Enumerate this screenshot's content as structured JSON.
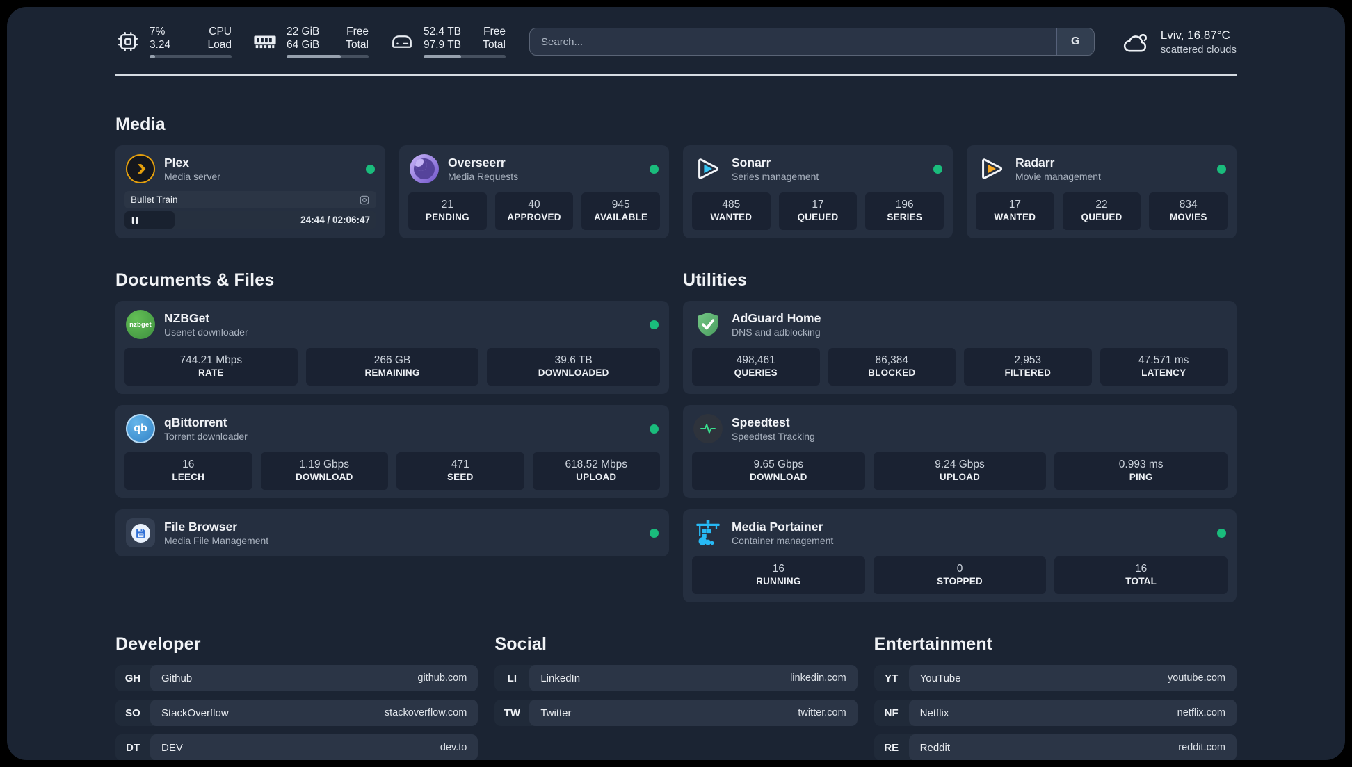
{
  "header": {
    "metrics": [
      {
        "v1": "7%",
        "v2": "3.24",
        "l1": "CPU",
        "l2": "Load",
        "progress_pct": 7
      },
      {
        "v1": "22 GiB",
        "v2": "64 GiB",
        "l1": "Free",
        "l2": "Total",
        "progress_pct": 66
      },
      {
        "v1": "52.4 TB",
        "v2": "97.9 TB",
        "l1": "Free",
        "l2": "Total",
        "progress_pct": 46
      }
    ],
    "search": {
      "placeholder": "Search...",
      "provider": "G"
    },
    "weather": {
      "title": "Lviv, 16.87°C",
      "subtitle": "scattered clouds"
    }
  },
  "media": {
    "title": "Media",
    "plex": {
      "name": "Plex",
      "description": "Media server",
      "now_playing": {
        "title": "Bullet Train",
        "time_display": "24:44 / 02:06:47",
        "progress_pct": 20
      }
    },
    "overseerr": {
      "name": "Overseerr",
      "description": "Media Requests",
      "stats": [
        {
          "value": "21",
          "label": "PENDING"
        },
        {
          "value": "40",
          "label": "APPROVED"
        },
        {
          "value": "945",
          "label": "AVAILABLE"
        }
      ]
    },
    "sonarr": {
      "name": "Sonarr",
      "description": "Series management",
      "stats": [
        {
          "value": "485",
          "label": "WANTED"
        },
        {
          "value": "17",
          "label": "QUEUED"
        },
        {
          "value": "196",
          "label": "SERIES"
        }
      ]
    },
    "radarr": {
      "name": "Radarr",
      "description": "Movie management",
      "stats": [
        {
          "value": "17",
          "label": "WANTED"
        },
        {
          "value": "22",
          "label": "QUEUED"
        },
        {
          "value": "834",
          "label": "MOVIES"
        }
      ]
    }
  },
  "documents": {
    "title": "Documents & Files",
    "nzbget": {
      "name": "NZBGet",
      "description": "Usenet downloader",
      "stats": [
        {
          "value": "744.21 Mbps",
          "label": "RATE"
        },
        {
          "value": "266 GB",
          "label": "REMAINING"
        },
        {
          "value": "39.6 TB",
          "label": "DOWNLOADED"
        }
      ]
    },
    "qbittorrent": {
      "name": "qBittorrent",
      "description": "Torrent downloader",
      "stats": [
        {
          "value": "16",
          "label": "LEECH"
        },
        {
          "value": "1.19 Gbps",
          "label": "DOWNLOAD"
        },
        {
          "value": "471",
          "label": "SEED"
        },
        {
          "value": "618.52 Mbps",
          "label": "UPLOAD"
        }
      ]
    },
    "filebrowser": {
      "name": "File Browser",
      "description": "Media File Management"
    }
  },
  "utilities": {
    "title": "Utilities",
    "adguard": {
      "name": "AdGuard Home",
      "description": "DNS and adblocking",
      "stats": [
        {
          "value": "498,461",
          "label": "QUERIES"
        },
        {
          "value": "86,384",
          "label": "BLOCKED"
        },
        {
          "value": "2,953",
          "label": "FILTERED"
        },
        {
          "value": "47.571 ms",
          "label": "LATENCY"
        }
      ]
    },
    "speedtest": {
      "name": "Speedtest",
      "description": "Speedtest Tracking",
      "stats": [
        {
          "value": "9.65 Gbps",
          "label": "DOWNLOAD"
        },
        {
          "value": "9.24 Gbps",
          "label": "UPLOAD"
        },
        {
          "value": "0.993 ms",
          "label": "PING"
        }
      ]
    },
    "portainer": {
      "name": "Media Portainer",
      "description": "Container management",
      "stats": [
        {
          "value": "16",
          "label": "RUNNING"
        },
        {
          "value": "0",
          "label": "STOPPED"
        },
        {
          "value": "16",
          "label": "TOTAL"
        }
      ]
    }
  },
  "icon_labels": {
    "nzbget": "nzbget",
    "qbittorrent": "qb"
  },
  "bookmarks": [
    {
      "title": "Developer",
      "links": [
        {
          "abbr": "GH",
          "name": "Github",
          "url": "github.com"
        },
        {
          "abbr": "SO",
          "name": "StackOverflow",
          "url": "stackoverflow.com"
        },
        {
          "abbr": "DT",
          "name": "DEV",
          "url": "dev.to"
        }
      ]
    },
    {
      "title": "Social",
      "links": [
        {
          "abbr": "LI",
          "name": "LinkedIn",
          "url": "linkedin.com"
        },
        {
          "abbr": "TW",
          "name": "Twitter",
          "url": "twitter.com"
        }
      ]
    },
    {
      "title": "Entertainment",
      "links": [
        {
          "abbr": "YT",
          "name": "YouTube",
          "url": "youtube.com"
        },
        {
          "abbr": "NF",
          "name": "Netflix",
          "url": "netflix.com"
        },
        {
          "abbr": "RE",
          "name": "Reddit",
          "url": "reddit.com"
        }
      ]
    }
  ],
  "colors": {
    "accent_green": "#1abc7c",
    "panel": "#1b2433",
    "card": "#252f40"
  }
}
